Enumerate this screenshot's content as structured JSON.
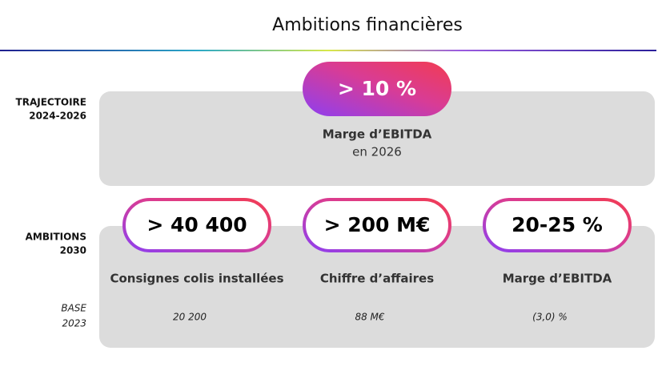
{
  "header": {
    "title": "Ambitions financières"
  },
  "trajectory": {
    "label": [
      "TRAJECTOIRE",
      "2024-2026"
    ],
    "value": "> 10 %",
    "caption": "Marge d’EBITDA",
    "subcaption": "en 2026"
  },
  "ambitions": {
    "label": [
      "AMBITIONS",
      "2030"
    ],
    "items": [
      {
        "value": "> 40 400",
        "label": "Consignes colis installées",
        "base": "20 200"
      },
      {
        "value": "> 200 M€",
        "label": "Chiffre d’affaires",
        "base": "88 M€"
      },
      {
        "value": "20-25 %",
        "label": "Marge d’EBITDA",
        "base": "(3,0) %"
      }
    ]
  },
  "base": {
    "label": [
      "BASE",
      "2023"
    ]
  }
}
